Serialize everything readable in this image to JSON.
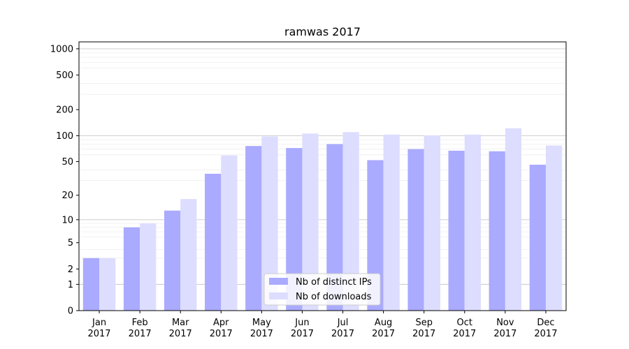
{
  "chart_data": {
    "type": "bar",
    "title": "ramwas 2017",
    "xlabel": "",
    "ylabel": "",
    "yscale": "log(1+y)",
    "ylim": [
      0,
      1200
    ],
    "yticks": [
      0,
      1,
      2,
      5,
      10,
      20,
      50,
      100,
      200,
      500,
      1000
    ],
    "grid": "horizontal, light gray",
    "legend_position": "lower center",
    "categories": [
      [
        "Jan",
        "2017"
      ],
      [
        "Feb",
        "2017"
      ],
      [
        "Mar",
        "2017"
      ],
      [
        "Apr",
        "2017"
      ],
      [
        "May",
        "2017"
      ],
      [
        "Jun",
        "2017"
      ],
      [
        "Jul",
        "2017"
      ],
      [
        "Aug",
        "2017"
      ],
      [
        "Sep",
        "2017"
      ],
      [
        "Oct",
        "2017"
      ],
      [
        "Nov",
        "2017"
      ],
      [
        "Dec",
        "2017"
      ]
    ],
    "series": [
      {
        "name": "Nb of distinct IPs",
        "color": "#aaaaff",
        "values": [
          3,
          8,
          13,
          36,
          76,
          72,
          80,
          52,
          70,
          67,
          66,
          46
        ]
      },
      {
        "name": "Nb of downloads",
        "color": "#ddddff",
        "values": [
          3,
          9,
          18,
          59,
          98,
          106,
          110,
          103,
          101,
          103,
          122,
          77
        ]
      }
    ]
  }
}
